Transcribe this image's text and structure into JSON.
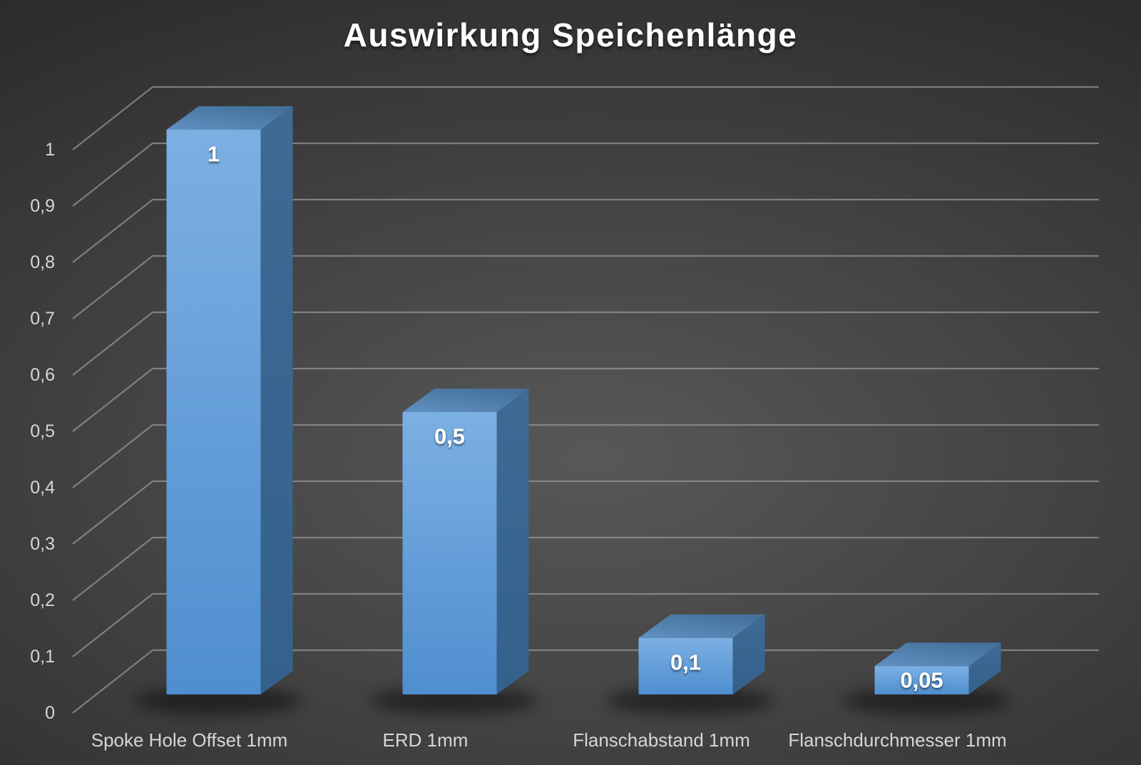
{
  "chart_data": {
    "type": "bar",
    "style": "3d-column",
    "title": "Auswirkung Speichenlänge",
    "categories": [
      "Spoke Hole Offset 1mm",
      "ERD 1mm",
      "Flanschabstand 1mm",
      "Flanschdurchmesser 1mm"
    ],
    "values": [
      1,
      0.5,
      0.1,
      0.05
    ],
    "value_labels": [
      "1",
      "0,5",
      "0,1",
      "0,05"
    ],
    "xlabel": "",
    "ylabel": "",
    "ylim": [
      0,
      1
    ],
    "y_tick_step": 0.1,
    "y_tick_labels": [
      "0",
      "0,1",
      "0,2",
      "0,3",
      "0,4",
      "0,5",
      "0,6",
      "0,7",
      "0,8",
      "0,9",
      "1"
    ],
    "decimal_separator": ",",
    "grid": true,
    "legend": false,
    "colors": {
      "bar_front_top": "#7cb0e3",
      "bar_front_bottom": "#4f8ecf",
      "bar_top_near": "#6191c2",
      "bar_top_far": "#44719b",
      "bar_side_top": "#3e6a94",
      "bar_side_bottom": "#34618c",
      "gridline": "#989898",
      "tick_label": "#d6d6d6",
      "category_label": "#d6d6d6",
      "data_label": "#ffffff",
      "title": "#ffffff"
    }
  }
}
